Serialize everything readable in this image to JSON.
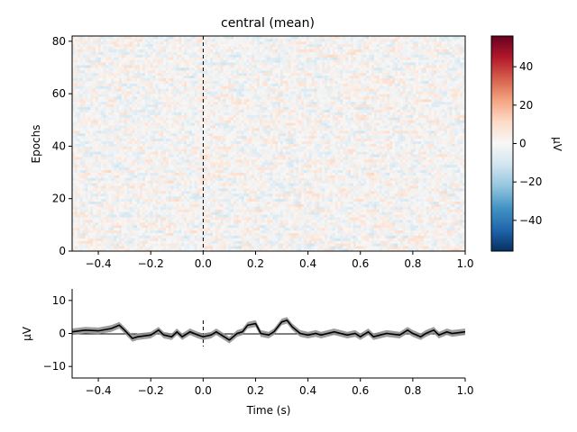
{
  "chart_data": [
    {
      "type": "heatmap",
      "title": "central (mean)",
      "xlabel": "",
      "ylabel": "Epochs",
      "xlim": [
        -0.5,
        1.0
      ],
      "ylim": [
        0,
        82
      ],
      "x_ticks": [
        -0.4,
        -0.2,
        0.0,
        0.2,
        0.4,
        0.6,
        0.8,
        1.0
      ],
      "x_tick_labels": [
        "−0.4",
        "−0.2",
        "0.0",
        "0.2",
        "0.4",
        "0.6",
        "0.8",
        "1.0"
      ],
      "y_ticks": [
        0,
        20,
        40,
        60,
        80
      ],
      "y_tick_labels": [
        "0",
        "20",
        "40",
        "60",
        "80"
      ],
      "n_epochs": 82,
      "n_times": 151,
      "event_marker_time": 0.0,
      "colormap": "RdBu_r",
      "colorbar": {
        "label": "µV",
        "vmin": -56,
        "vmax": 56,
        "ticks": [
          -40,
          -20,
          0,
          20,
          40
        ],
        "tick_labels": [
          "−40",
          "−20",
          "0",
          "20",
          "40"
        ]
      }
    },
    {
      "type": "line",
      "title": "",
      "xlabel": "Time (s)",
      "ylabel": "µV",
      "xlim": [
        -0.5,
        1.0
      ],
      "ylim": [
        -13.5,
        13.5
      ],
      "x_ticks": [
        -0.4,
        -0.2,
        0.0,
        0.2,
        0.4,
        0.6,
        0.8,
        1.0
      ],
      "x_tick_labels": [
        "−0.4",
        "−0.2",
        "0.0",
        "0.2",
        "0.4",
        "0.6",
        "0.8",
        "1.0"
      ],
      "y_ticks": [
        -10,
        0,
        10
      ],
      "y_tick_labels": [
        "−10",
        "0",
        "10"
      ],
      "x": [
        -0.5,
        -0.45,
        -0.4,
        -0.35,
        -0.32,
        -0.3,
        -0.27,
        -0.25,
        -0.2,
        -0.17,
        -0.15,
        -0.12,
        -0.1,
        -0.08,
        -0.05,
        -0.02,
        0.0,
        0.03,
        0.05,
        0.08,
        0.1,
        0.13,
        0.15,
        0.17,
        0.2,
        0.22,
        0.25,
        0.27,
        0.3,
        0.32,
        0.34,
        0.37,
        0.4,
        0.43,
        0.45,
        0.5,
        0.55,
        0.58,
        0.6,
        0.63,
        0.65,
        0.7,
        0.75,
        0.78,
        0.8,
        0.83,
        0.85,
        0.88,
        0.9,
        0.93,
        0.95,
        1.0
      ],
      "y": [
        0.5,
        1.0,
        0.8,
        1.5,
        2.5,
        1.0,
        -1.5,
        -1.0,
        -0.5,
        1.0,
        -0.5,
        -1.0,
        0.5,
        -1.0,
        0.5,
        -0.5,
        -1.0,
        -0.5,
        0.5,
        -1.0,
        -2.0,
        0.0,
        0.5,
        2.5,
        3.0,
        0.0,
        -0.5,
        0.5,
        3.5,
        4.0,
        2.0,
        0.0,
        -0.5,
        0.0,
        -0.5,
        0.5,
        -0.5,
        0.0,
        -1.0,
        0.5,
        -1.0,
        0.0,
        -0.5,
        1.0,
        0.0,
        -1.0,
        0.0,
        1.0,
        -0.5,
        0.5,
        0.0,
        0.5
      ],
      "band_halfwidth": 1.0,
      "event_marker_time": 0.0
    }
  ]
}
